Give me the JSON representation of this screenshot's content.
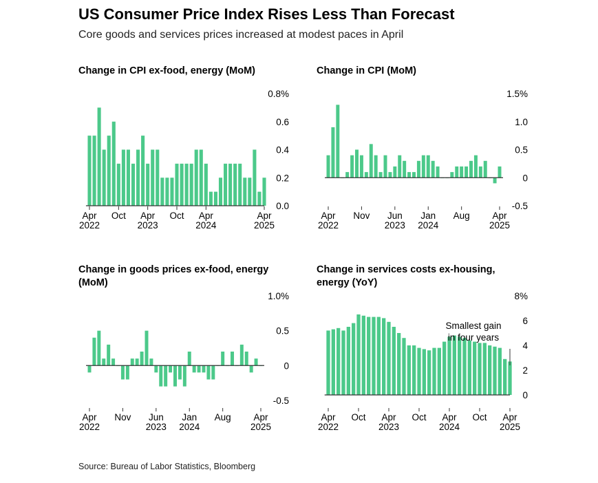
{
  "header": {
    "title": "US Consumer Price Index Rises Less Than Forecast",
    "subtitle": "Core goods and services prices increased at modest paces in April"
  },
  "source": "Source: Bureau of Labor Statistics, Bloomberg",
  "colors": {
    "bar": "#4cc98a",
    "axis": "#333333",
    "tick": "#444444"
  },
  "chart_data": [
    {
      "type": "bar",
      "title": "Change in CPI ex-food, energy (MoM)",
      "x_labels": [
        {
          "index": 0,
          "lines": [
            "Apr",
            "2022"
          ]
        },
        {
          "index": 6,
          "lines": [
            "Oct"
          ]
        },
        {
          "index": 12,
          "lines": [
            "Apr",
            "2023"
          ]
        },
        {
          "index": 18,
          "lines": [
            "Oct"
          ]
        },
        {
          "index": 24,
          "lines": [
            "Apr",
            "2024"
          ]
        },
        {
          "index": 36,
          "lines": [
            "Apr",
            "2025"
          ]
        }
      ],
      "y_ticks": [
        {
          "value": 0.8,
          "label": "0.8%"
        },
        {
          "value": 0.6,
          "label": "0.6"
        },
        {
          "value": 0.4,
          "label": "0.4"
        },
        {
          "value": 0.2,
          "label": "0.2"
        },
        {
          "value": 0.0,
          "label": "0.0"
        }
      ],
      "ylim": [
        0,
        0.8
      ],
      "values": [
        0.5,
        0.5,
        0.7,
        0.4,
        0.5,
        0.6,
        0.3,
        0.4,
        0.4,
        0.3,
        0.4,
        0.5,
        0.3,
        0.4,
        0.4,
        0.2,
        0.2,
        0.2,
        0.3,
        0.3,
        0.3,
        0.3,
        0.4,
        0.4,
        0.3,
        0.1,
        0.1,
        0.2,
        0.3,
        0.3,
        0.3,
        0.3,
        0.2,
        0.2,
        0.4,
        0.1,
        0.2
      ]
    },
    {
      "type": "bar",
      "title": "Change in CPI (MoM)",
      "x_labels": [
        {
          "index": 0,
          "lines": [
            "Apr",
            "2022"
          ]
        },
        {
          "index": 7,
          "lines": [
            "Nov"
          ]
        },
        {
          "index": 14,
          "lines": [
            "Jun",
            "2023"
          ]
        },
        {
          "index": 21,
          "lines": [
            "Jan",
            "2024"
          ]
        },
        {
          "index": 28,
          "lines": [
            "Aug"
          ]
        },
        {
          "index": 36,
          "lines": [
            "Apr",
            "2025"
          ]
        }
      ],
      "y_ticks": [
        {
          "value": 1.5,
          "label": "1.5%"
        },
        {
          "value": 1.0,
          "label": "1.0"
        },
        {
          "value": 0.5,
          "label": "0.5"
        },
        {
          "value": 0,
          "label": "0"
        },
        {
          "value": -0.5,
          "label": "-0.5"
        }
      ],
      "ylim": [
        -0.5,
        1.5
      ],
      "values": [
        0.4,
        0.9,
        1.3,
        0.0,
        0.1,
        0.4,
        0.5,
        0.4,
        0.1,
        0.6,
        0.4,
        0.1,
        0.4,
        0.1,
        0.2,
        0.4,
        0.3,
        0.1,
        0.1,
        0.3,
        0.4,
        0.4,
        0.3,
        0.2,
        0.0,
        0.0,
        0.1,
        0.2,
        0.2,
        0.2,
        0.3,
        0.4,
        0.2,
        0.3,
        0.0,
        -0.1,
        0.2
      ]
    },
    {
      "type": "bar",
      "title": "Change in goods prices ex-food, energy (MoM)",
      "x_labels": [
        {
          "index": 0,
          "lines": [
            "Apr",
            "2022"
          ]
        },
        {
          "index": 7,
          "lines": [
            "Nov"
          ]
        },
        {
          "index": 14,
          "lines": [
            "Jun",
            "2023"
          ]
        },
        {
          "index": 21,
          "lines": [
            "Jan",
            "2024"
          ]
        },
        {
          "index": 28,
          "lines": [
            "Aug"
          ]
        },
        {
          "index": 36,
          "lines": [
            "Apr",
            "2025"
          ]
        }
      ],
      "y_ticks": [
        {
          "value": 1.0,
          "label": "1.0%"
        },
        {
          "value": 0.5,
          "label": "0.5"
        },
        {
          "value": 0,
          "label": "0"
        },
        {
          "value": -0.5,
          "label": "-0.5"
        }
      ],
      "ylim": [
        -0.6,
        1.0
      ],
      "values": [
        -0.1,
        0.4,
        0.5,
        0.1,
        0.3,
        0.1,
        0.0,
        -0.2,
        -0.2,
        0.1,
        0.1,
        0.2,
        0.5,
        0.1,
        -0.1,
        -0.3,
        -0.3,
        -0.1,
        -0.3,
        -0.2,
        -0.3,
        0.2,
        -0.1,
        -0.1,
        -0.1,
        -0.2,
        -0.2,
        0.0,
        0.2,
        0.0,
        0.2,
        0.0,
        0.3,
        0.2,
        -0.1,
        0.1,
        0.0
      ]
    },
    {
      "type": "bar",
      "title": "Change in services costs ex-housing, energy (YoY)",
      "x_labels": [
        {
          "index": 0,
          "lines": [
            "Apr",
            "2022"
          ]
        },
        {
          "index": 6,
          "lines": [
            "Oct"
          ]
        },
        {
          "index": 12,
          "lines": [
            "Apr",
            "2023"
          ]
        },
        {
          "index": 18,
          "lines": [
            "Oct"
          ]
        },
        {
          "index": 24,
          "lines": [
            "Apr",
            "2024"
          ]
        },
        {
          "index": 30,
          "lines": [
            "Oct"
          ]
        },
        {
          "index": 36,
          "lines": [
            "Apr",
            "2025"
          ]
        }
      ],
      "y_ticks": [
        {
          "value": 8,
          "label": "8%"
        },
        {
          "value": 6,
          "label": "6"
        },
        {
          "value": 4,
          "label": "4"
        },
        {
          "value": 2,
          "label": "2"
        },
        {
          "value": 0,
          "label": "0"
        }
      ],
      "ylim": [
        -1,
        8
      ],
      "annotation": {
        "lines": [
          "Smallest gain",
          "in four years"
        ],
        "index": 36
      },
      "values": [
        5.2,
        5.3,
        5.4,
        5.2,
        5.5,
        5.8,
        6.5,
        6.4,
        6.3,
        6.3,
        6.3,
        6.2,
        5.9,
        5.5,
        5.0,
        4.6,
        4.0,
        4.0,
        3.8,
        3.7,
        3.6,
        3.8,
        3.8,
        4.3,
        4.7,
        4.8,
        4.7,
        4.6,
        4.4,
        4.3,
        4.2,
        4.2,
        4.0,
        3.9,
        3.8,
        2.9,
        2.7
      ]
    }
  ]
}
